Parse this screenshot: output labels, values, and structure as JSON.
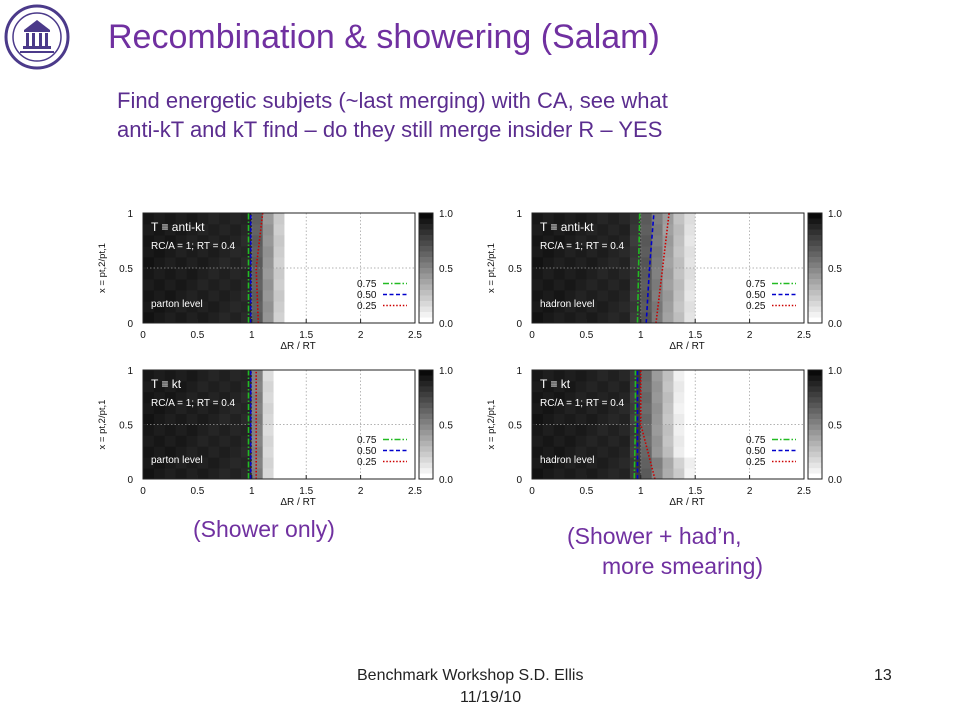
{
  "slide": {
    "title": "Recombination & showering (Salam)",
    "subtitle_line1": "Find energetic subjets (~last merging) with CA, see what",
    "subtitle_line2": "anti-kT and kT find – do they still merge insider R – YES",
    "caption_left": "(Shower only)",
    "caption_right_line1": "(Shower + had’n,",
    "caption_right_line2": "more smearing)",
    "footer_line1": "Benchmark Workshop    S.D. Ellis",
    "footer_line2": "11/19/10",
    "page_number": "13",
    "logo_icon": "university-seal-icon",
    "colors": {
      "title": "#7030a0",
      "green_contour": "#22bb22",
      "blue_contour": "#0000cc",
      "red_contour": "#cc0000"
    }
  },
  "chart_data": [
    {
      "type": "heatmap",
      "panel": "top-left",
      "title": "T ≡ anti-kt",
      "params": "RC/A = 1; RT = 0.4",
      "level": "parton level",
      "xlabel": "ΔR / RT",
      "ylabel": "x = pt,2/pt,1",
      "xlim": [
        0,
        2.5
      ],
      "ylim": [
        0,
        1
      ],
      "xticks": [
        "0",
        "0.5",
        "1",
        "1.5",
        "2",
        "2.5"
      ],
      "yticks": [
        "0",
        "0.5",
        "1"
      ],
      "colorbar": {
        "range": [
          0.0,
          1.0
        ],
        "ticks": [
          "0.0",
          "0.5",
          "1.0"
        ]
      },
      "contours": [
        {
          "level": "0.75",
          "style": "dash-dot",
          "color": "#22bb22",
          "x": [
            0.97,
            0.97,
            0.97
          ]
        },
        {
          "level": "0.50",
          "style": "dashed",
          "color": "#0000cc",
          "x": [
            0.99,
            0.99,
            0.99
          ]
        },
        {
          "level": "0.25",
          "style": "dotted",
          "color": "#cc0000",
          "x": [
            1.06,
            1.04,
            1.1
          ]
        }
      ],
      "profile": {
        "plateau_to": 0.95,
        "falloff_to": 1.35
      }
    },
    {
      "type": "heatmap",
      "panel": "top-right",
      "title": "T ≡ anti-kt",
      "params": "RC/A = 1; RT = 0.4",
      "level": "hadron level",
      "xlabel": "ΔR / RT",
      "ylabel": "x = pt,2/pt,1",
      "xlim": [
        0,
        2.5
      ],
      "ylim": [
        0,
        1
      ],
      "xticks": [
        "0",
        "0.5",
        "1",
        "1.5",
        "2",
        "2.5"
      ],
      "yticks": [
        "0",
        "0.5",
        "1"
      ],
      "colorbar": {
        "range": [
          0.0,
          1.0
        ],
        "ticks": [
          "0.0",
          "0.5",
          "1.0"
        ]
      },
      "contours": [
        {
          "level": "0.75",
          "style": "dash-dot",
          "color": "#22bb22",
          "x": [
            0.97,
            0.98,
            0.99
          ]
        },
        {
          "level": "0.50",
          "style": "dashed",
          "color": "#0000cc",
          "x": [
            1.05,
            1.08,
            1.12
          ]
        },
        {
          "level": "0.25",
          "style": "dotted",
          "color": "#cc0000",
          "x": [
            1.14,
            1.2,
            1.26
          ]
        }
      ],
      "profile": {
        "plateau_to": 0.9,
        "falloff_to": 1.55
      }
    },
    {
      "type": "heatmap",
      "panel": "bottom-left",
      "title": "T ≡ kt",
      "params": "RC/A = 1; RT = 0.4",
      "level": "parton level",
      "xlabel": "ΔR / RT",
      "ylabel": "x = pt,2/pt,1",
      "xlim": [
        0,
        2.5
      ],
      "ylim": [
        0,
        1
      ],
      "xticks": [
        "0",
        "0.5",
        "1",
        "1.5",
        "2",
        "2.5"
      ],
      "yticks": [
        "0",
        "0.5",
        "1"
      ],
      "colorbar": {
        "range": [
          0.0,
          1.0
        ],
        "ticks": [
          "0.0",
          "0.5",
          "1.0"
        ]
      },
      "contours": [
        {
          "level": "0.75",
          "style": "dash-dot",
          "color": "#22bb22",
          "x": [
            0.97,
            0.97,
            0.97
          ]
        },
        {
          "level": "0.50",
          "style": "dashed",
          "color": "#0000cc",
          "x": [
            0.99,
            0.99,
            0.99
          ]
        },
        {
          "level": "0.25",
          "style": "dotted",
          "color": "#cc0000",
          "x": [
            1.04,
            1.04,
            1.04
          ]
        }
      ],
      "profile": {
        "plateau_to": 0.95,
        "falloff_to": 1.2
      }
    },
    {
      "type": "heatmap",
      "panel": "bottom-right",
      "title": "T ≡ kt",
      "params": "RC/A = 1; RT = 0.4",
      "level": "hadron level",
      "xlabel": "ΔR / RT",
      "ylabel": "x = pt,2/pt,1",
      "xlim": [
        0,
        2.5
      ],
      "ylim": [
        0,
        1
      ],
      "xticks": [
        "0",
        "0.5",
        "1",
        "1.5",
        "2",
        "2.5"
      ],
      "yticks": [
        "0",
        "0.5",
        "1"
      ],
      "colorbar": {
        "range": [
          0.0,
          1.0
        ],
        "ticks": [
          "0.0",
          "0.5",
          "1.0"
        ]
      },
      "contours": [
        {
          "level": "0.75",
          "style": "dash-dot",
          "color": "#22bb22",
          "x": [
            0.94,
            0.95,
            0.95
          ]
        },
        {
          "level": "0.50",
          "style": "dashed",
          "color": "#0000cc",
          "x": [
            0.97,
            0.97,
            0.97
          ]
        },
        {
          "level": "0.25",
          "style": "dotted",
          "color": "#cc0000",
          "x": [
            1.13,
            1.0,
            1.0
          ]
        }
      ],
      "profile": {
        "plateau_to": 0.9,
        "falloff_to": 1.4
      }
    }
  ]
}
